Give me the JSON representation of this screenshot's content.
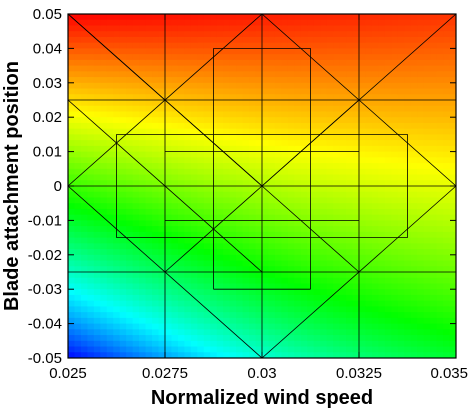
{
  "chart_data": {
    "type": "heatmap",
    "title": "",
    "xlabel": "Normalized wind speed",
    "ylabel": "Blade attachment position",
    "xlim": [
      0.025,
      0.035
    ],
    "ylim": [
      -0.05,
      0.05
    ],
    "x_ticks": [
      0.025,
      0.0275,
      0.03,
      0.0325,
      0.035
    ],
    "y_ticks": [
      -0.05,
      -0.04,
      -0.03,
      -0.02,
      -0.01,
      0,
      0.01,
      0.02,
      0.03,
      0.04,
      0.05
    ],
    "x_tick_labels": [
      "0.025",
      "0.0275",
      "0.03",
      "0.0325",
      "0.035"
    ],
    "y_tick_labels": [
      "-0.05",
      "-0.04",
      "-0.03",
      "-0.02",
      "-0.01",
      "0",
      "0.01",
      "0.02",
      "0.03",
      "0.04",
      "0.05"
    ],
    "colormap": [
      "#0000ff",
      "#00ffff",
      "#00ff00",
      "#ffff00",
      "#ff0000"
    ],
    "field": {
      "description_of_trend": "value increases with blade attachment position and slightly with wind speed",
      "value_at_corners": {
        "x0.025_y-0.05": 0.0,
        "x0.035_y-0.05": 0.45,
        "x0.025_y0.05": 1.0,
        "x0.035_y0.05": 0.95
      }
    },
    "mesh_lines": [
      [
        0.025,
        0.05,
        0.035,
        0.05
      ],
      [
        0.025,
        0.05,
        0.03,
        0.0
      ],
      [
        0.03,
        0.0,
        0.035,
        0.05
      ],
      [
        0.025,
        0.05,
        0.0275,
        0.025
      ],
      [
        0.03,
        0.05,
        0.03,
        -0.05
      ],
      [
        0.025,
        0.025,
        0.035,
        0.025
      ],
      [
        0.0275,
        0.05,
        0.0275,
        -0.05
      ],
      [
        0.0325,
        0.05,
        0.0325,
        -0.05
      ],
      [
        0.025,
        0.025,
        0.03,
        -0.025
      ],
      [
        0.025,
        -0.025,
        0.035,
        -0.025
      ],
      [
        0.03,
        0.05,
        0.025,
        0.0
      ],
      [
        0.03,
        0.05,
        0.035,
        0.0
      ],
      [
        0.025,
        0.0,
        0.03,
        -0.05
      ],
      [
        0.035,
        0.0,
        0.03,
        -0.05
      ],
      [
        0.025,
        0.0,
        0.035,
        0.0
      ],
      [
        0.025,
        -0.05,
        0.035,
        -0.05
      ],
      [
        0.0275,
        0.025,
        0.03,
        0.0
      ],
      [
        0.0325,
        0.025,
        0.03,
        0.0
      ],
      [
        0.0275,
        -0.025,
        0.03,
        0.0
      ],
      [
        0.0325,
        -0.025,
        0.03,
        0.0
      ],
      [
        0.02875,
        0.04,
        0.03125,
        0.04
      ],
      [
        0.02875,
        0.04,
        0.02875,
        -0.03
      ],
      [
        0.03125,
        0.04,
        0.03125,
        -0.03
      ],
      [
        0.02875,
        -0.03,
        0.03125,
        -0.03
      ],
      [
        0.0275,
        0.01,
        0.0325,
        0.01
      ],
      [
        0.0275,
        -0.01,
        0.0325,
        -0.01
      ],
      [
        0.02625,
        0.015,
        0.03375,
        0.015
      ],
      [
        0.02625,
        0.015,
        0.02625,
        -0.015
      ],
      [
        0.03375,
        0.015,
        0.03375,
        -0.015
      ],
      [
        0.02625,
        -0.015,
        0.03375,
        -0.015
      ]
    ]
  }
}
